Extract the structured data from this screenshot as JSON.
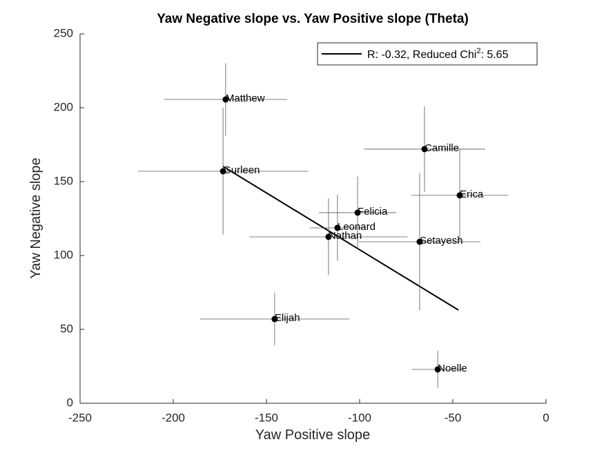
{
  "chart_data": {
    "type": "scatter",
    "title": "Yaw Negative slope vs. Yaw Positive slope (Theta)",
    "x_label": "Yaw Positive slope",
    "y_label": "Yaw Negative slope",
    "xlim": [
      -250,
      0
    ],
    "ylim": [
      0,
      250
    ],
    "xticks": [
      -250,
      -200,
      -150,
      -100,
      -50,
      0
    ],
    "yticks": [
      0,
      50,
      100,
      150,
      200,
      250
    ],
    "points": {
      "color": "#000000",
      "error_color": "#555555",
      "labels": [
        "Matthew",
        "Gurleen",
        "Camille",
        "Erica",
        "Felicia",
        "Leonard",
        "Nathan",
        "Setayesh",
        "Elijah",
        "Noelle"
      ],
      "x": [
        -171.9,
        -173.3,
        -65.2,
        -46.3,
        -101.1,
        -111.9,
        -116.7,
        -67.8,
        -145.6,
        -58.1
      ],
      "y": [
        205.6,
        157.0,
        172.0,
        140.7,
        129.0,
        118.7,
        112.6,
        109.3,
        57.0,
        22.9
      ],
      "xerr": [
        33,
        45.7,
        32.4,
        26,
        20.7,
        14.8,
        42.4,
        32.6,
        40,
        14
      ],
      "yerr": [
        24.5,
        43,
        29,
        31.5,
        24.5,
        22.4,
        26,
        46.3,
        17.8,
        12.6
      ]
    },
    "fit": {
      "color": "#000000",
      "x": [
        -173.3,
        -47.0
      ],
      "y": [
        160.3,
        63.1
      ]
    },
    "legend": {
      "position": "upper right",
      "text": "R: -0.32, Reduced Chi",
      "superscript": "2",
      "suffix": ": 5.65"
    }
  }
}
